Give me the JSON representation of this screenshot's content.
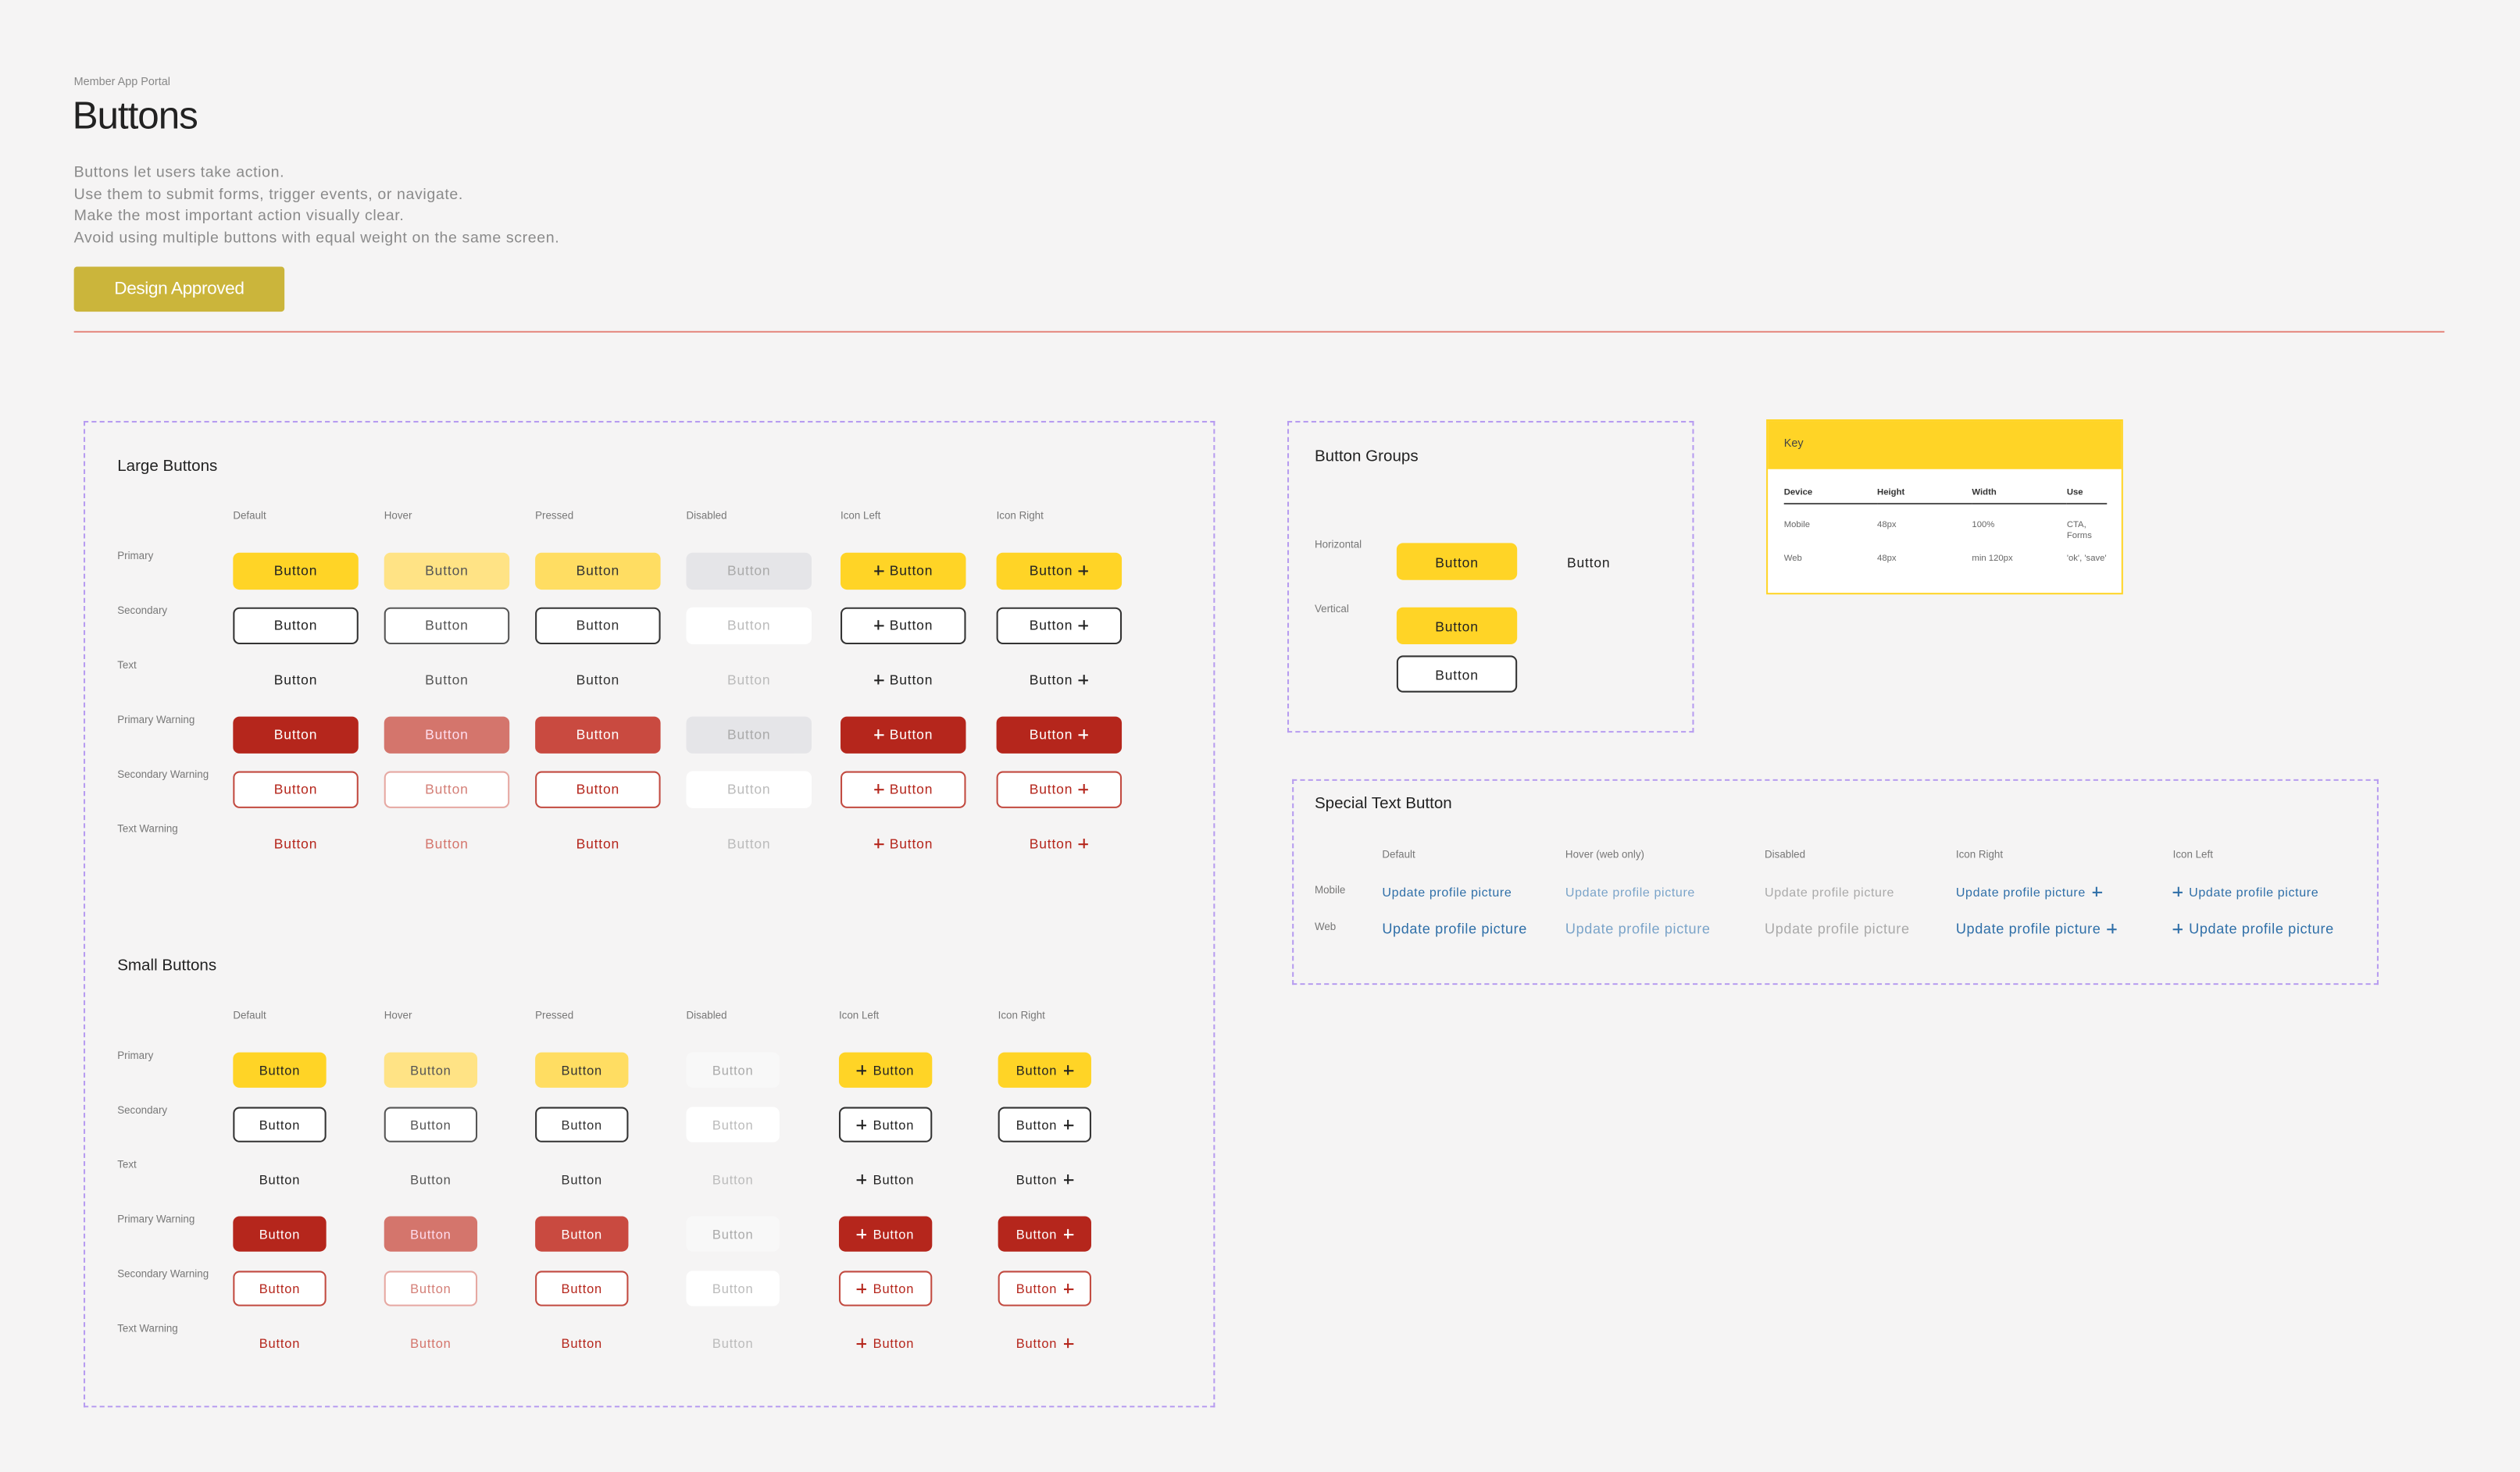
{
  "header": {
    "eyebrow": "Member App Portal",
    "title": "Buttons",
    "description": [
      "Buttons let users take action.",
      "Use them to submit forms, trigger events, or navigate.",
      "Make the most important action visually clear.",
      "Avoid using multiple buttons with equal weight on the same screen."
    ],
    "status": "Design Approved"
  },
  "large_buttons": {
    "title": "Large Buttons",
    "columns": [
      "Default",
      "Hover",
      "Pressed",
      "Disabled",
      "Icon Left",
      "Icon Right"
    ],
    "rows": [
      {
        "label": "Primary",
        "cells": [
          "Button",
          "Button",
          "Button",
          "Button",
          "Button",
          "Button"
        ]
      },
      {
        "label": "Secondary",
        "cells": [
          "Button",
          "Button",
          "Button",
          "Button",
          "Button",
          "Button"
        ]
      },
      {
        "label": "Text",
        "cells": [
          "Button",
          "Button",
          "Button",
          "Button",
          "Button",
          "Button"
        ]
      },
      {
        "label": "Primary Warning",
        "cells": [
          "Button",
          "Button",
          "Button",
          "Button",
          "Button",
          "Button"
        ]
      },
      {
        "label": "Secondary Warning",
        "cells": [
          "Button",
          "Button",
          "Button",
          "Button",
          "Button",
          "Button"
        ]
      },
      {
        "label": "Text Warning",
        "cells": [
          "Button",
          "Button",
          "Button",
          "Button",
          "Button",
          "Button"
        ]
      }
    ]
  },
  "small_buttons": {
    "title": "Small Buttons",
    "columns": [
      "Default",
      "Hover",
      "Pressed",
      "Disabled",
      "Icon Left",
      "Icon Right"
    ],
    "rows": [
      {
        "label": "Primary",
        "cells": [
          "Button",
          "Button",
          "Button",
          "Button",
          "Button",
          "Button"
        ]
      },
      {
        "label": "Secondary",
        "cells": [
          "Button",
          "Button",
          "Button",
          "Button",
          "Button",
          "Button"
        ]
      },
      {
        "label": "Text",
        "cells": [
          "Button",
          "Button",
          "Button",
          "Button",
          "Button",
          "Button"
        ]
      },
      {
        "label": "Primary Warning",
        "cells": [
          "Button",
          "Button",
          "Button",
          "Button",
          "Button",
          "Button"
        ]
      },
      {
        "label": "Secondary Warning",
        "cells": [
          "Button",
          "Button",
          "Button",
          "Button",
          "Button",
          "Button"
        ]
      },
      {
        "label": "Text Warning",
        "cells": [
          "Button",
          "Button",
          "Button",
          "Button",
          "Button",
          "Button"
        ]
      }
    ]
  },
  "button_groups": {
    "title": "Button Groups",
    "rows": [
      {
        "label": "Horizontal",
        "buttons": [
          "Button",
          "Button"
        ]
      },
      {
        "label": "Vertical",
        "buttons": [
          "Button",
          "Button"
        ]
      }
    ]
  },
  "key": {
    "title": "Key",
    "table": {
      "header": [
        "Device",
        "Height",
        "Width",
        "Use"
      ],
      "rows": [
        [
          "Mobile",
          "48px",
          "100%",
          "CTA, Forms"
        ],
        [
          "Web",
          "48px",
          "min 120px",
          "'ok', 'save'"
        ]
      ]
    }
  },
  "special_text_button": {
    "title": "Special Text Button",
    "columns": [
      "Default",
      "Hover (web only)",
      "Disabled",
      "Icon Right",
      "Icon Left"
    ],
    "rows": [
      {
        "label": "Mobile",
        "cells": [
          "Update profile picture",
          "Update profile picture",
          "Update profile picture",
          "Update profile picture",
          "Update profile picture"
        ]
      },
      {
        "label": "Web",
        "cells": [
          "Update profile picture",
          "Update profile picture",
          "Update profile picture",
          "Update profile picture",
          "Update profile picture"
        ]
      }
    ]
  }
}
